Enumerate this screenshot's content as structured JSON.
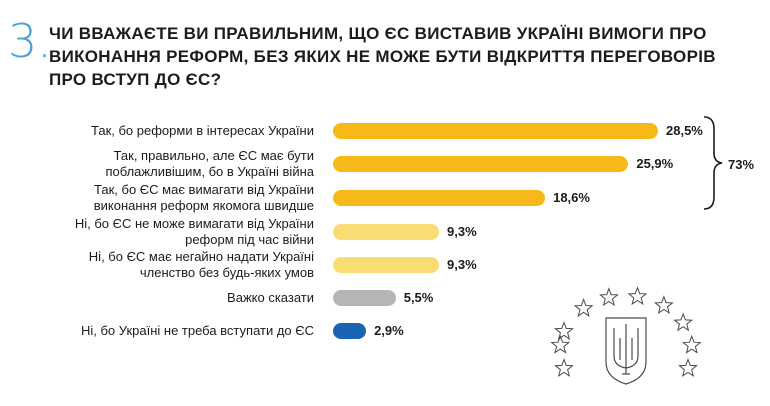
{
  "question": {
    "number": "3.",
    "title_lines": [
      "ЧИ ВВАЖАЄТЕ ВИ ПРАВИЛЬНИМ, ЩО ЄС ВИСТАВИВ УКРАЇНІ ВИМОГИ ПРО",
      "ВИКОНАННЯ РЕФОРМ, БЕЗ ЯКИХ НЕ МОЖЕ БУТИ ВІДКРИТТЯ ПЕРЕГОВОРІВ",
      "ПРО ВСТУП ДО ЄС?"
    ]
  },
  "colors": {
    "accent": "#4aa0d9",
    "yes": "#f6b919",
    "yes_light": "#f9dd73",
    "unsure": "#b5b5b5",
    "no": "#1b64b3"
  },
  "chart_data": {
    "type": "bar",
    "orientation": "horizontal",
    "categories": [
      [
        "Так, бо реформи в інтересах України"
      ],
      [
        "Так, правильно, але ЄС має бути",
        "поблажливішим, бо в Україні війна"
      ],
      [
        "Так, бо ЄС має вимагати від України",
        "виконання реформ якомога швидше"
      ],
      [
        "Ні, бо ЄС не може вимагати від України",
        "реформ під час війни"
      ],
      [
        "Ні, бо ЄС має негайно надати Україні",
        "членство без будь-яких умов"
      ],
      [
        "Важко сказати"
      ],
      [
        "Ні, бо Україні не треба вступати до ЄС"
      ]
    ],
    "values": [
      28.5,
      25.9,
      18.6,
      9.3,
      9.3,
      5.5,
      2.9
    ],
    "value_labels": [
      "28,5%",
      "25,9%",
      "18,6%",
      "9,3%",
      "9,3%",
      "5,5%",
      "2,9%"
    ],
    "bar_colors": [
      "#f6b919",
      "#f6b919",
      "#f6b919",
      "#f9dd73",
      "#f9dd73",
      "#b5b5b5",
      "#1b64b3"
    ],
    "xlim": [
      0,
      30
    ],
    "grid": false,
    "legend": "none",
    "annotations": [
      {
        "text": "73%",
        "applies_to_categories": [
          0,
          1,
          2
        ]
      }
    ]
  }
}
